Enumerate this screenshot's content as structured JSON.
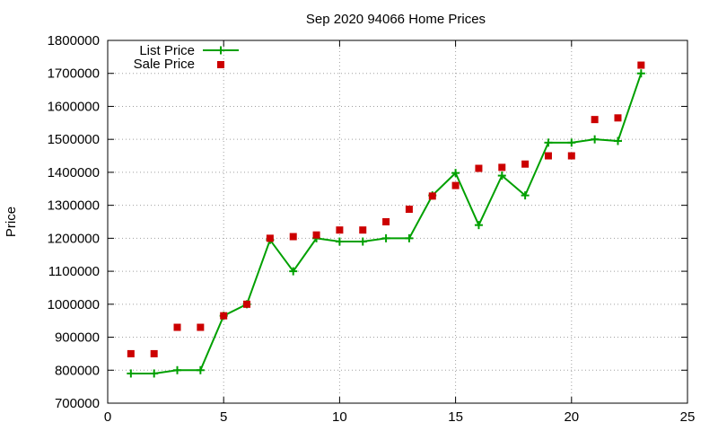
{
  "chart_data": {
    "type": "line",
    "title": "Sep 2020 94066 Home Prices",
    "xlabel": "",
    "ylabel": "Price",
    "xlim": [
      0,
      25
    ],
    "ylim": [
      700000,
      1800000
    ],
    "x_ticks": [
      0,
      5,
      10,
      15,
      20,
      25
    ],
    "y_ticks": [
      700000,
      800000,
      900000,
      1000000,
      1100000,
      1200000,
      1300000,
      1400000,
      1500000,
      1600000,
      1700000,
      1800000
    ],
    "grid": true,
    "legend_position": "top-left",
    "series": [
      {
        "name": "List Price",
        "style": "line-points",
        "color": "#00a000",
        "x": [
          1,
          2,
          3,
          4,
          5,
          6,
          7,
          8,
          9,
          10,
          11,
          12,
          13,
          14,
          15,
          16,
          17,
          18,
          19,
          20,
          21,
          22,
          23
        ],
        "y": [
          790000,
          790000,
          800000,
          800000,
          965000,
          1000000,
          1195000,
          1100000,
          1200000,
          1190000,
          1190000,
          1200000,
          1200000,
          1330000,
          1398000,
          1240000,
          1390000,
          1330000,
          1490000,
          1490000,
          1500000,
          1495000,
          1700000
        ]
      },
      {
        "name": "Sale Price",
        "style": "points",
        "color": "#cc0000",
        "x": [
          1,
          2,
          3,
          4,
          5,
          6,
          7,
          8,
          9,
          10,
          11,
          12,
          13,
          14,
          15,
          16,
          17,
          18,
          19,
          20,
          21,
          22,
          23
        ],
        "y": [
          850000,
          850000,
          930000,
          930000,
          965000,
          1000000,
          1200000,
          1205000,
          1210000,
          1225000,
          1225000,
          1250000,
          1288000,
          1328000,
          1360000,
          1412000,
          1415000,
          1425000,
          1450000,
          1450000,
          1560000,
          1565000,
          1725000
        ]
      }
    ]
  }
}
